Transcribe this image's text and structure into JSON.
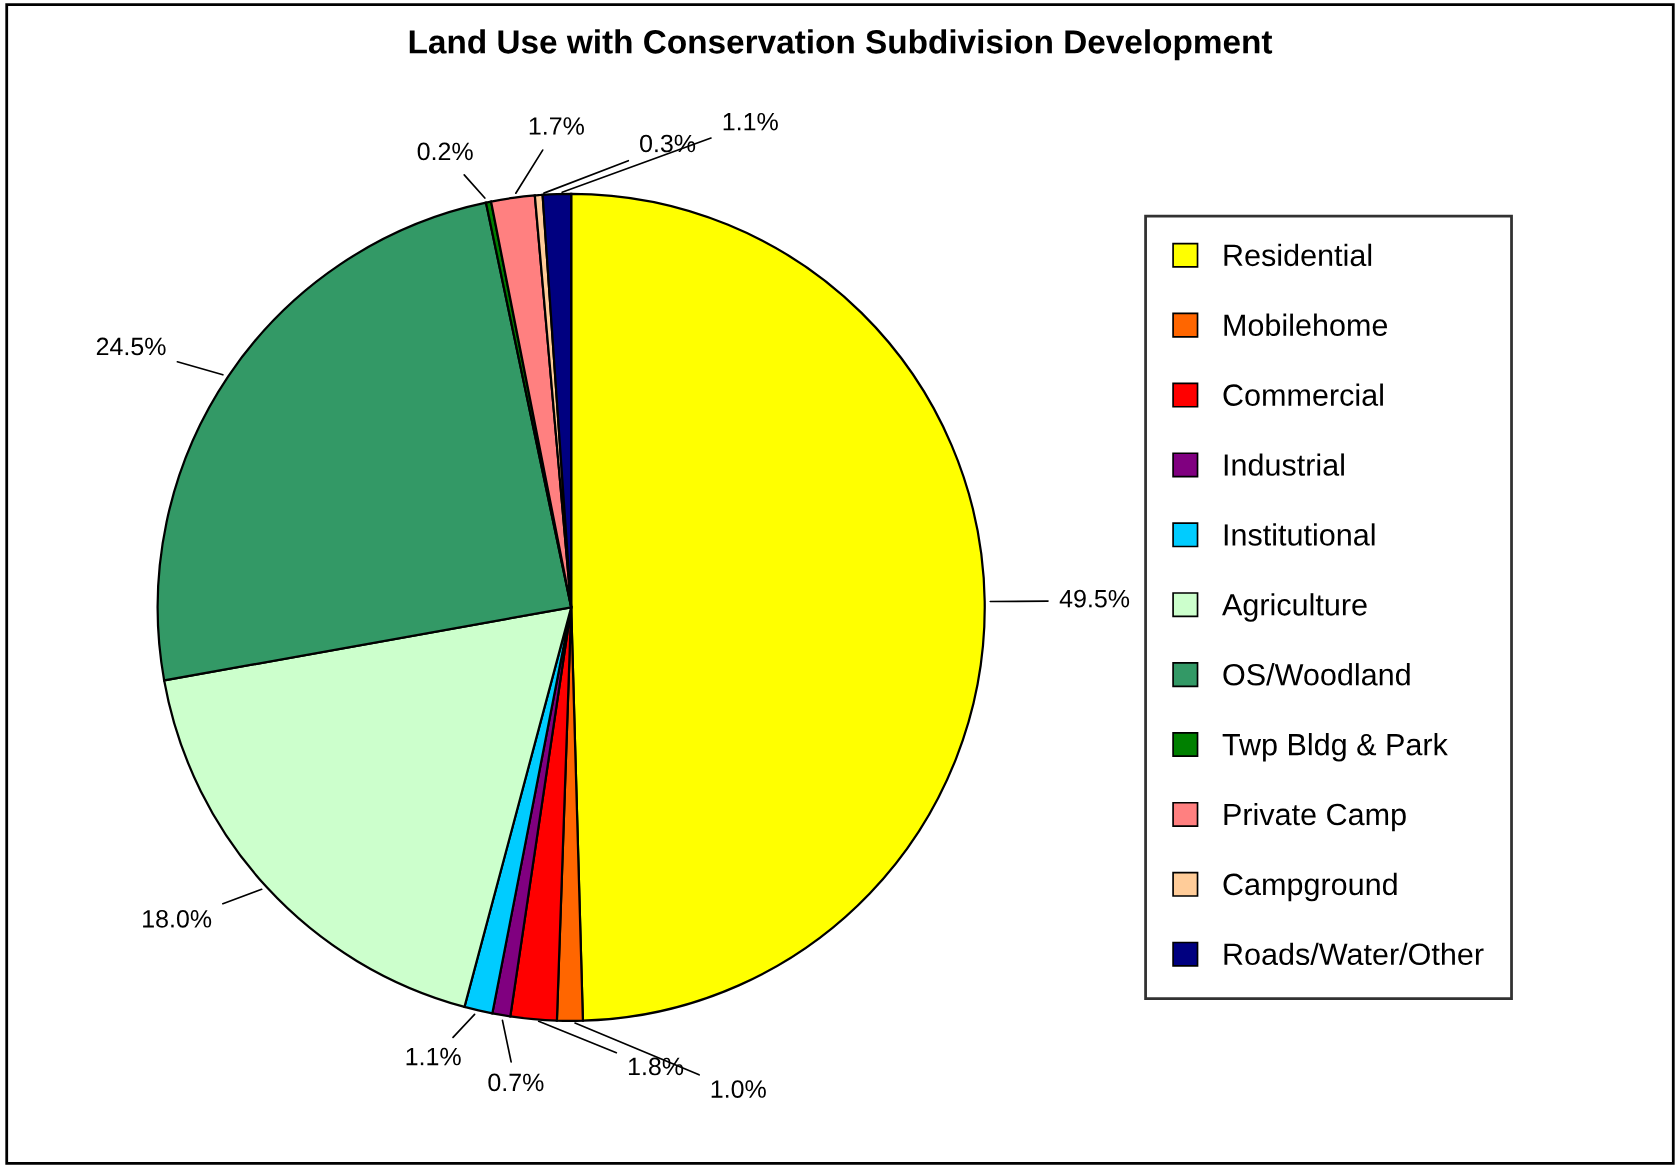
{
  "chart_data": {
    "type": "pie",
    "title": "Land Use with Conservation Subdivision Development",
    "categories": [
      "Residential",
      "Mobilehome",
      "Commercial",
      "Industrial",
      "Institutional",
      "Agriculture",
      "OS/Woodland",
      "Twp Bldg & Park",
      "Private Camp",
      "Campground",
      "Roads/Water/Other"
    ],
    "values": [
      49.5,
      1.0,
      1.8,
      0.7,
      1.1,
      18.0,
      24.5,
      0.2,
      1.7,
      0.3,
      1.1
    ],
    "value_labels": [
      "49.5%",
      "1.0%",
      "1.8%",
      "0.7%",
      "1.1%",
      "18.0%",
      "24.5%",
      "0.2%",
      "1.7%",
      "0.3%",
      "1.1%"
    ],
    "colors": [
      "#ffff00",
      "#ff6600",
      "#ff0000",
      "#800080",
      "#00ccff",
      "#ccffcc",
      "#339966",
      "#008000",
      "#ff8080",
      "#ffcc99",
      "#000080"
    ],
    "legend": "right"
  }
}
